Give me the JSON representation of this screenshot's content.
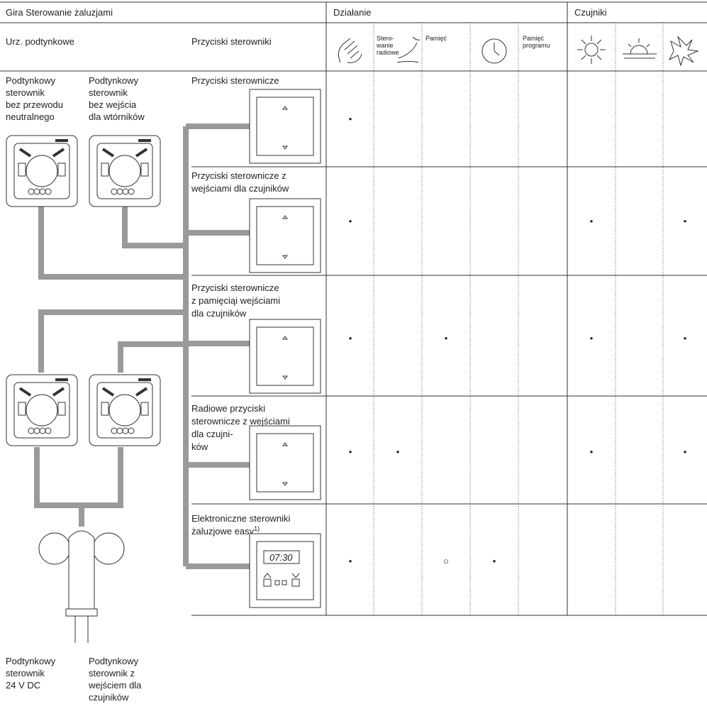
{
  "header": {
    "title": "Gira Sterowanie żaluzjami",
    "function_group": "Działanie",
    "sensor_group": "Czujniki",
    "flush_devices": "Urz. podtynkowe",
    "push_buttons": "Przyciski sterowniki"
  },
  "columns": {
    "radio": [
      "Stero-",
      "wanie",
      "radiowe"
    ],
    "memory": [
      "Pamięć"
    ],
    "program": [
      "Pamięć",
      "programu"
    ]
  },
  "devices": {
    "top_left": [
      "Podtynkowy",
      "sterownik",
      "bez przewodu",
      "neutralnego"
    ],
    "top_right": [
      "Podtynkowy",
      "sterownik",
      "bez wejścia",
      "dla wtórników"
    ],
    "bottom_left": [
      "Podtynkowy",
      "sterownik",
      "24 V DC"
    ],
    "bottom_right": [
      "Podtynkowy",
      "sterownik z",
      "wejściem dla",
      "czujników"
    ]
  },
  "rows": [
    {
      "label": [
        "Przyciski sterownicze"
      ],
      "cells": {
        "manual": "•"
      }
    },
    {
      "label": [
        "Przyciski sterownicze z",
        "wejściami dla czujników"
      ],
      "cells": {
        "manual": "•",
        "sun": "•",
        "wind": "•"
      }
    },
    {
      "label": [
        "Przyciski sterownicze",
        "z pamięciąi wejściami",
        "dla czujników"
      ],
      "cells": {
        "manual": "•",
        "memory": "•",
        "sun": "•",
        "wind": "•"
      }
    },
    {
      "label": [
        "Radiowe przyciski",
        "sterownicze z wejściami",
        "dla czujni-",
        "ków"
      ],
      "cells": {
        "manual": "•",
        "radio": "•",
        "sun": "•",
        "wind": "•"
      }
    },
    {
      "label": [
        "Elektroniczne sterowniki",
        "żaluzjowe easy"
      ],
      "footnote": "1)",
      "display": "07:30",
      "cells": {
        "manual": "•",
        "memory": "○",
        "clock": "•"
      }
    }
  ]
}
